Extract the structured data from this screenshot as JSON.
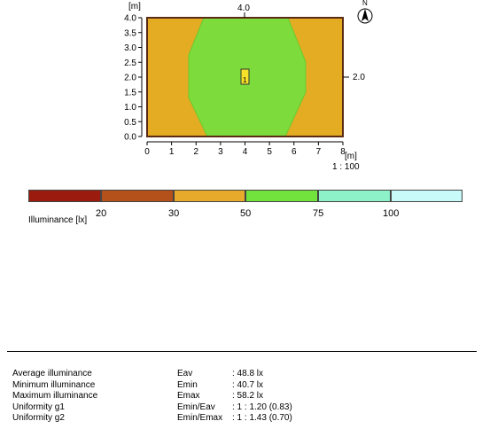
{
  "plan": {
    "unit_top": "[m]",
    "unit_bottom": "[m]",
    "top_marker": "4.0",
    "right_marker": "2.0",
    "scale": "1 : 100",
    "north": "N",
    "luminaire_label": "1",
    "y_ticks": [
      "4.0",
      "3.5",
      "3.0",
      "2.5",
      "2.0",
      "1.5",
      "1.0",
      "0.5",
      "0.0"
    ],
    "x_ticks": [
      "0",
      "1",
      "2",
      "3",
      "4",
      "5",
      "6",
      "7",
      "8"
    ],
    "zones": [
      {
        "range": "30 - 50 lx",
        "color": "#E3AC22"
      },
      {
        "range": "50 - 75 lx",
        "color": "#7DDC3C"
      }
    ]
  },
  "legend": {
    "title": "Illuminance [lx]",
    "colors": [
      "#9B1B0F",
      "#B4511A",
      "#E8AA2A",
      "#72E23C",
      "#8DF2C8",
      "#C9FAFA"
    ],
    "ticks": [
      "20",
      "30",
      "50",
      "75",
      "100"
    ]
  },
  "stats": [
    {
      "label": "Average illuminance",
      "symbol": "Eav",
      "value": ": 48.8 lx"
    },
    {
      "label": "Minimum illuminance",
      "symbol": "Emin",
      "value": ": 40.7 lx"
    },
    {
      "label": "Maximum illuminance",
      "symbol": "Emax",
      "value": ": 58.2 lx"
    },
    {
      "label": "Uniformity g1",
      "symbol": "Emin/Eav",
      "value": ": 1 : 1.20 (0.83)"
    },
    {
      "label": "Uniformity g2",
      "symbol": "Emin/Emax",
      "value": ": 1 : 1.43 (0.70)"
    }
  ]
}
